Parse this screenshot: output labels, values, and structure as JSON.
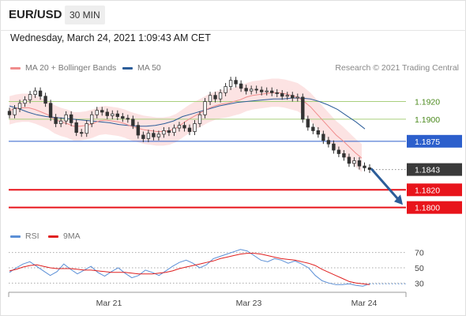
{
  "header": {
    "symbol": "EUR/USD",
    "timeframe": "30 MIN",
    "timestamp": "Wednesday, March 24, 2021 1:09:43 AM CET"
  },
  "legend": {
    "ma20": {
      "label": "MA 20 + Bollinger Bands",
      "color": "#f08c8c"
    },
    "ma50": {
      "label": "MA 50",
      "color": "#2c5d99"
    },
    "rsi": {
      "label": "RSI",
      "color": "#5b8fd6"
    },
    "ma9": {
      "label": "9MA",
      "color": "#e02020"
    }
  },
  "credit": "Research © 2021 Trading Central",
  "chart_data": [
    {
      "type": "candlestick",
      "ylim": [
        1.178,
        1.195
      ],
      "x_ticks": [
        "Mar 21",
        "Mar 23",
        "Mar 24"
      ],
      "close": [
        1.1905,
        1.1912,
        1.1918,
        1.1922,
        1.1928,
        1.1932,
        1.1926,
        1.1918,
        1.1902,
        1.1895,
        1.1898,
        1.1905,
        1.1896,
        1.1885,
        1.1884,
        1.1895,
        1.1905,
        1.191,
        1.1908,
        1.1904,
        1.1906,
        1.1903,
        1.1901,
        1.19,
        1.1893,
        1.1882,
        1.1878,
        1.1884,
        1.188,
        1.1883,
        1.1887,
        1.1885,
        1.189,
        1.1893,
        1.189,
        1.1886,
        1.1895,
        1.1905,
        1.192,
        1.1927,
        1.1923,
        1.193,
        1.1937,
        1.1944,
        1.194,
        1.1935,
        1.1932,
        1.1934,
        1.1933,
        1.1931,
        1.1932,
        1.193,
        1.1929,
        1.1926,
        1.1927,
        1.1924,
        1.1925,
        1.19,
        1.1891,
        1.1887,
        1.1883,
        1.1876,
        1.1872,
        1.1865,
        1.1861,
        1.1857,
        1.185,
        1.1853,
        1.1847,
        1.1845,
        1.1843
      ],
      "ma20": [
        1.191,
        1.1912,
        1.1913,
        1.1913,
        1.1911,
        1.1908,
        1.1905,
        1.19,
        1.1897,
        1.1895,
        1.1892,
        1.1892,
        1.1893,
        1.1895,
        1.1898,
        1.1899,
        1.1898,
        1.1897,
        1.1895,
        1.1892,
        1.189,
        1.1888,
        1.1887,
        1.1886,
        1.1886,
        1.1887,
        1.189,
        1.1895,
        1.19,
        1.1904,
        1.1908,
        1.1912,
        1.1915,
        1.1917,
        1.1918,
        1.192,
        1.1922,
        1.1925,
        1.1927,
        1.1928,
        1.1929,
        1.193,
        1.193,
        1.1929,
        1.1927,
        1.1925,
        1.192,
        1.1914,
        1.1906,
        1.1898,
        1.189,
        1.1882,
        1.1876,
        1.1869,
        1.1862,
        1.1856
      ],
      "ma50": [
        1.1915,
        1.1912,
        1.1908,
        1.1905,
        1.1903,
        1.1902,
        1.1901,
        1.19,
        1.1899,
        1.1898,
        1.1897,
        1.1896,
        1.1894,
        1.1893,
        1.1892,
        1.1892,
        1.1893,
        1.1895,
        1.1898,
        1.1903,
        1.1906,
        1.1909,
        1.1912,
        1.1915,
        1.1917,
        1.1919,
        1.192,
        1.1921,
        1.1922,
        1.1923,
        1.1923,
        1.1924,
        1.1924,
        1.1923,
        1.192,
        1.1916,
        1.1911,
        1.1904,
        1.1897,
        1.1889
      ],
      "levels": [
        {
          "label": "1.1920",
          "value": 1.192,
          "kind": "resistance"
        },
        {
          "label": "1.1900",
          "value": 1.19,
          "kind": "resistance"
        },
        {
          "label": "1.1875",
          "value": 1.1875,
          "kind": "pivot"
        },
        {
          "label": "1.1843",
          "value": 1.1843,
          "kind": "last"
        },
        {
          "label": "1.1820",
          "value": 1.182,
          "kind": "support"
        },
        {
          "label": "1.1800",
          "value": 1.18,
          "kind": "support"
        }
      ]
    },
    {
      "type": "line",
      "ylim": [
        20,
        80
      ],
      "y_ticks": [
        "70",
        "50",
        "30"
      ],
      "series": [
        {
          "name": "RSI",
          "values": [
            44,
            50,
            55,
            58,
            52,
            46,
            40,
            45,
            55,
            48,
            42,
            47,
            52,
            44,
            39,
            45,
            50,
            43,
            37,
            40,
            47,
            44,
            40,
            46,
            52,
            57,
            60,
            56,
            50,
            54,
            62,
            65,
            68,
            71,
            74,
            72,
            66,
            60,
            58,
            62,
            60,
            56,
            59,
            55,
            50,
            40,
            33,
            30,
            28,
            28,
            29,
            27,
            26,
            29
          ]
        },
        {
          "name": "9MA",
          "values": [
            46,
            48,
            51,
            53,
            54,
            52,
            50,
            49,
            49,
            49,
            48,
            47,
            47,
            46,
            45,
            44,
            44,
            44,
            43,
            42,
            42,
            42,
            43,
            44,
            46,
            49,
            51,
            53,
            55,
            57,
            59,
            62,
            64,
            66,
            68,
            69,
            69,
            68,
            66,
            64,
            62,
            61,
            60,
            58,
            56,
            53,
            48,
            44,
            40,
            36,
            32,
            30,
            29,
            28
          ]
        }
      ]
    }
  ]
}
